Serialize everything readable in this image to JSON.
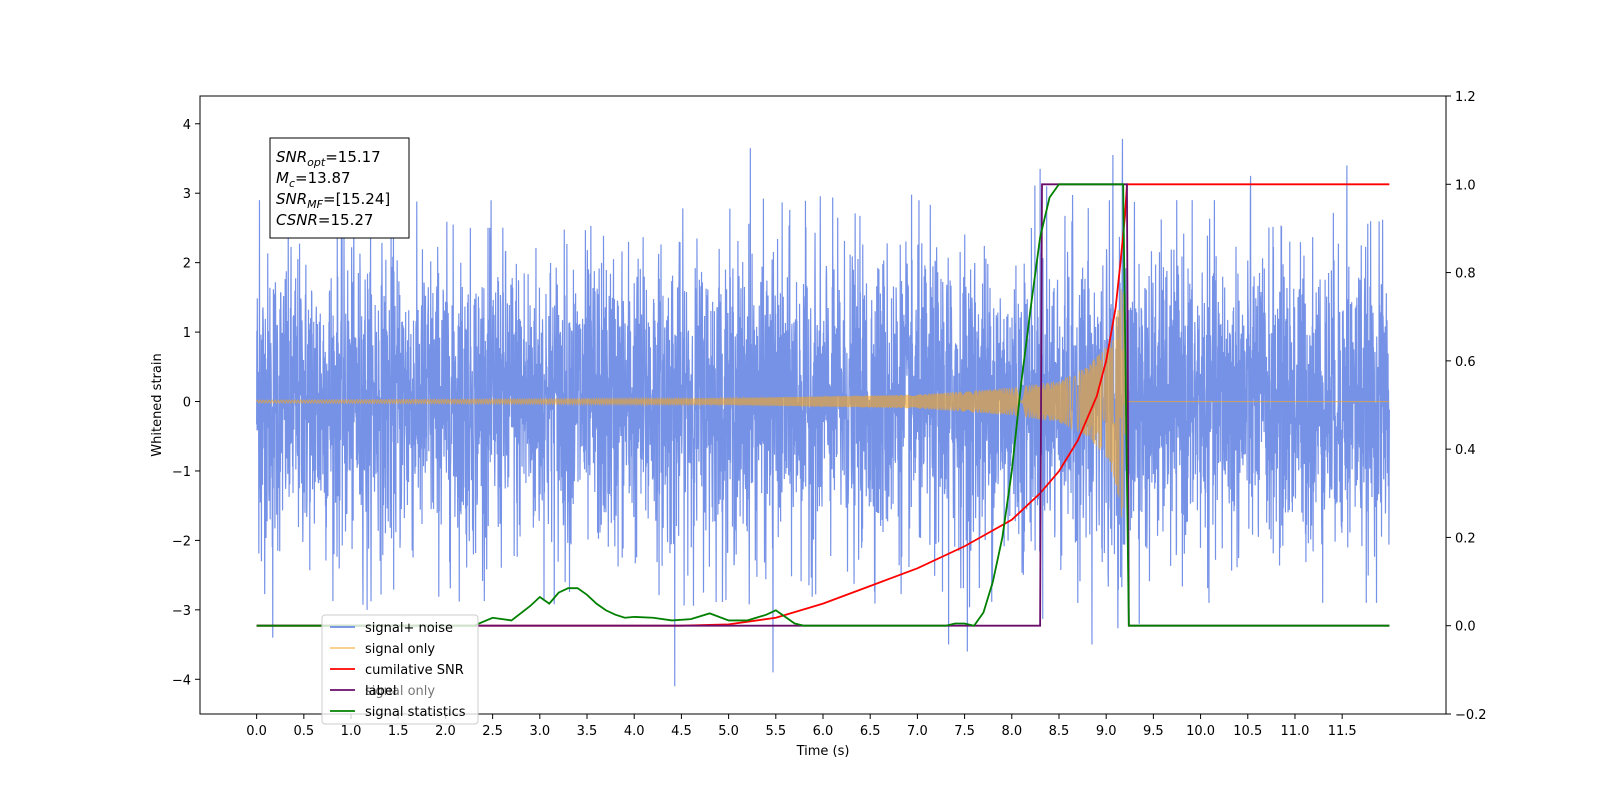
{
  "chart_data": {
    "type": "line",
    "title": "",
    "xlabel": "Time (s)",
    "ylabel": "Whitened strain",
    "y2label": "",
    "xlim": [
      -0.6,
      12.6
    ],
    "ylim": [
      -4.5,
      4.4
    ],
    "y2lim": [
      -0.2,
      1.2
    ],
    "x_ticks": [
      0.0,
      0.5,
      1.0,
      1.5,
      2.0,
      2.5,
      3.0,
      3.5,
      4.0,
      4.5,
      5.0,
      5.5,
      6.0,
      6.5,
      7.0,
      7.5,
      8.0,
      8.5,
      9.0,
      9.5,
      10.0,
      10.5,
      11.0,
      11.5
    ],
    "x_tick_labels": [
      "0.0",
      "0.5",
      "1.0",
      "1.5",
      "2.0",
      "2.5",
      "3.0",
      "3.5",
      "4.0",
      "4.5",
      "5.0",
      "5.5",
      "6.0",
      "6.5",
      "7.0",
      "7.5",
      "8.0",
      "8.5",
      "9.0",
      "9.5",
      "10.0",
      "10.5",
      "11.0",
      "11.5"
    ],
    "y_ticks": [
      -4,
      -3,
      -2,
      -1,
      0,
      1,
      2,
      3,
      4
    ],
    "y_tick_labels": [
      "−4",
      "−3",
      "−2",
      "−1",
      "0",
      "1",
      "2",
      "3",
      "4"
    ],
    "y2_ticks": [
      -0.2,
      0.0,
      0.2,
      0.4,
      0.6,
      0.8,
      1.0,
      1.2
    ],
    "y2_tick_labels": [
      "−0.2",
      "0.0",
      "0.2",
      "0.4",
      "0.6",
      "0.8",
      "1.0",
      "1.2"
    ],
    "grid": false,
    "legend_position": "lower-left",
    "series": [
      {
        "name": "signal+ noise",
        "axis": "left",
        "color": "#6f8ce6",
        "kind": "noise",
        "x_range": [
          0.0,
          12.0
        ],
        "typical_amplitude": 1.7,
        "peaks": [
          [
            0.03,
            2.9
          ],
          [
            0.05,
            -2.3
          ],
          [
            0.17,
            -3.4
          ],
          [
            1.17,
            -3.0
          ],
          [
            2.47,
            2.5
          ],
          [
            4.43,
            -4.1
          ],
          [
            5.23,
            3.65
          ],
          [
            5.47,
            -3.9
          ],
          [
            7.33,
            -3.5
          ],
          [
            7.53,
            -3.6
          ],
          [
            8.3,
            3.35
          ],
          [
            8.37,
            3.1
          ],
          [
            8.85,
            -3.5
          ],
          [
            9.07,
            3.55
          ],
          [
            9.35,
            -3.2
          ],
          [
            10.53,
            3.25
          ],
          [
            11.55,
            3.4
          ]
        ]
      },
      {
        "name": "signal only",
        "axis": "left",
        "color": "#f5a623",
        "kind": "chirp",
        "envelope": [
          [
            0.0,
            0.02
          ],
          [
            5.0,
            0.05
          ],
          [
            7.0,
            0.1
          ],
          [
            8.0,
            0.2
          ],
          [
            8.5,
            0.3
          ],
          [
            8.8,
            0.5
          ],
          [
            9.0,
            0.8
          ],
          [
            9.1,
            1.2
          ],
          [
            9.18,
            1.8
          ],
          [
            9.22,
            0.0
          ],
          [
            12.0,
            0.0
          ]
        ]
      },
      {
        "name": "cumilative SNR",
        "axis": "right",
        "color": "#ff0000",
        "x": [
          0.0,
          4.5,
          5.0,
          5.5,
          6.0,
          6.5,
          7.0,
          7.5,
          8.0,
          8.3,
          8.5,
          8.7,
          8.9,
          9.0,
          9.1,
          9.15,
          9.2,
          9.22,
          9.3,
          12.0
        ],
        "y": [
          0.0,
          0.0,
          0.003,
          0.018,
          0.05,
          0.09,
          0.13,
          0.18,
          0.24,
          0.3,
          0.35,
          0.42,
          0.52,
          0.6,
          0.72,
          0.82,
          0.93,
          1.0,
          1.0,
          1.0
        ]
      },
      {
        "name": "label",
        "axis": "right",
        "color": "#6a0d6a",
        "x": [
          0.0,
          8.3,
          8.32,
          9.22,
          9.24,
          12.0
        ],
        "y": [
          0.0,
          0.0,
          1.0,
          1.0,
          0.0,
          0.0
        ]
      },
      {
        "name": "signal statistics",
        "axis": "right",
        "color": "#008000",
        "x": [
          0.0,
          2.3,
          2.5,
          2.7,
          2.9,
          3.0,
          3.1,
          3.2,
          3.3,
          3.4,
          3.5,
          3.6,
          3.7,
          3.8,
          3.9,
          4.0,
          4.2,
          4.4,
          4.6,
          4.8,
          5.0,
          5.2,
          5.4,
          5.5,
          5.6,
          5.7,
          5.8,
          6.0,
          7.3,
          7.4,
          7.5,
          7.6,
          7.7,
          7.8,
          7.9,
          8.0,
          8.1,
          8.2,
          8.3,
          8.4,
          8.5,
          8.6,
          9.18,
          9.24,
          12.0
        ],
        "y": [
          0.0,
          0.0,
          0.018,
          0.012,
          0.045,
          0.065,
          0.05,
          0.075,
          0.085,
          0.085,
          0.07,
          0.05,
          0.035,
          0.025,
          0.018,
          0.02,
          0.018,
          0.012,
          0.015,
          0.028,
          0.012,
          0.012,
          0.025,
          0.035,
          0.02,
          0.005,
          0.0,
          0.0,
          0.0,
          0.005,
          0.005,
          0.0,
          0.03,
          0.1,
          0.2,
          0.35,
          0.55,
          0.72,
          0.88,
          0.97,
          1.0,
          1.0,
          1.0,
          0.0,
          0.0
        ]
      }
    ],
    "annotation_lines": [
      {
        "base": "SNR",
        "sub": "opt",
        "rest": "=15.17"
      },
      {
        "base": "M",
        "sub": "c",
        "rest": "=13.87"
      },
      {
        "base": "SNR",
        "sub": "MF",
        "rest": "=[15.24]"
      },
      {
        "base": "CSNR",
        "sub": "",
        "rest": "=15.27"
      }
    ],
    "hidden_legend_text": "signal only"
  }
}
